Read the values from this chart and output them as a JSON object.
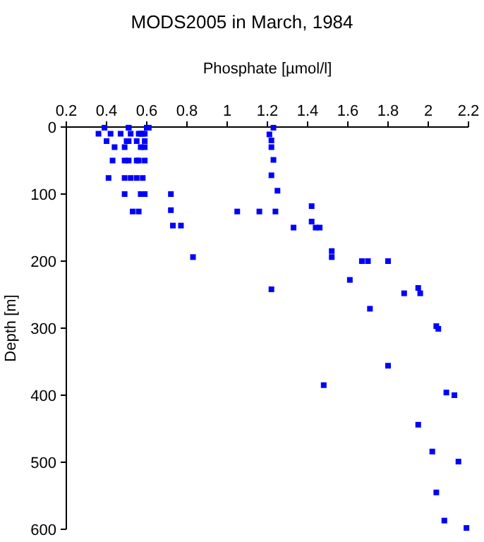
{
  "chart_data": {
    "type": "scatter",
    "title": "MODS2005 in March, 1984",
    "xlabel": "Phosphate [µmol/l]",
    "ylabel": "Depth [m]",
    "xlim": [
      0.2,
      2.2
    ],
    "xticks": [
      0.2,
      0.4,
      0.6,
      0.8,
      1,
      1.2,
      1.4,
      1.6,
      1.8,
      2,
      2.2
    ],
    "ylim": [
      600,
      0
    ],
    "yticks": [
      0,
      100,
      200,
      300,
      400,
      500,
      600
    ],
    "grid": false,
    "marker": "square",
    "series": [
      {
        "color": "#0000ff",
        "x": [
          0.39,
          0.51,
          0.51,
          0.6,
          0.61,
          0.36,
          0.42,
          0.47,
          0.52,
          0.56,
          0.57,
          0.58,
          0.59,
          0.4,
          0.5,
          0.51,
          0.55,
          0.59,
          0.44,
          0.49,
          0.57,
          0.59,
          0.43,
          0.49,
          0.51,
          0.55,
          0.56,
          0.59,
          0.41,
          0.49,
          0.52,
          0.55,
          0.58,
          0.49,
          0.57,
          0.59,
          0.72,
          0.72,
          0.53,
          0.56,
          1.05,
          1.16,
          1.24,
          0.73,
          0.77,
          0.83,
          1.23,
          1.21,
          1.22,
          1.22,
          1.23,
          1.22,
          1.25,
          1.42,
          1.42,
          1.33,
          1.44,
          1.46,
          1.52,
          1.52,
          1.67,
          1.7,
          1.8,
          1.61,
          1.95,
          1.22,
          1.88,
          1.96,
          1.71,
          2.04,
          2.05,
          1.8,
          1.48,
          2.09,
          2.13,
          1.95,
          2.02,
          2.15,
          2.04,
          2.08,
          2.19
        ],
        "values": [
          1,
          1,
          1,
          1,
          1,
          10,
          10,
          10,
          10,
          10,
          10,
          10,
          10,
          21,
          21,
          21,
          21,
          21,
          30,
          30,
          30,
          30,
          50,
          50,
          50,
          50,
          50,
          50,
          76,
          76,
          76,
          76,
          76,
          100,
          100,
          100,
          100,
          124,
          126,
          126,
          126,
          126,
          126,
          147,
          147,
          194,
          1,
          11,
          20,
          30,
          49,
          72,
          95,
          118,
          141,
          150,
          150,
          150,
          185,
          194,
          200,
          200,
          200,
          228,
          240,
          242,
          248,
          248,
          271,
          297,
          301,
          356,
          385,
          396,
          400,
          444,
          484,
          499,
          545,
          587,
          598
        ]
      }
    ]
  }
}
